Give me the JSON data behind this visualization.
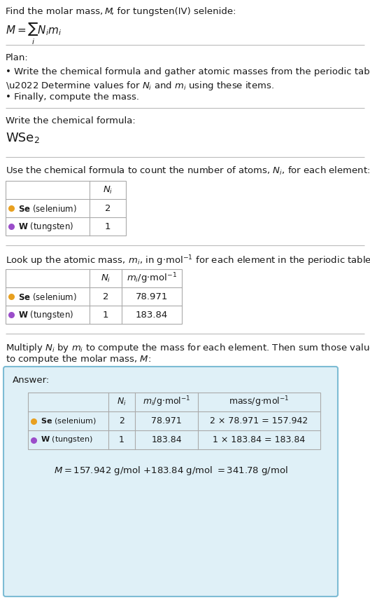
{
  "bg_color": "#ffffff",
  "text_color": "#1a1a1a",
  "se_color": "#e8a020",
  "w_color": "#9b4dca",
  "answer_bg": "#dff0f7",
  "answer_border": "#7dbcd4",
  "line_color": "#bbbbbb",
  "table_border_color": "#aaaaaa",
  "se_name_bold": "Se",
  "se_name_rest": " (selenium)",
  "w_name_bold": "W",
  "w_name_rest": " (tungsten)",
  "se_Ni": "2",
  "w_Ni": "1",
  "se_mi": "78.971",
  "w_mi": "183.84",
  "se_mass_eq": "2 × 78.971 = 157.942",
  "w_mass_eq": "1 × 183.84 = 183.84",
  "final_eq": "M = 157.942 g/mol + 183.84 g/mol = 341.78 g/mol"
}
